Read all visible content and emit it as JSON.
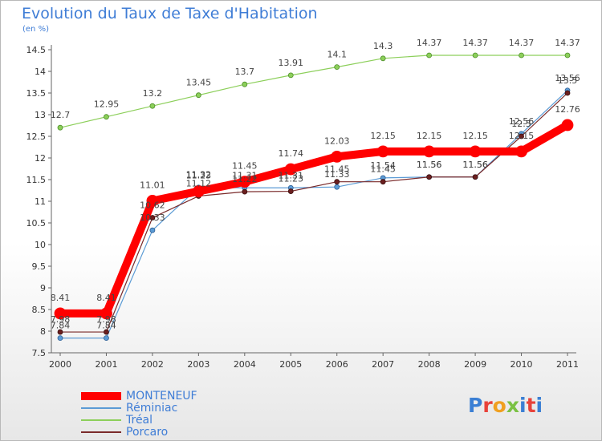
{
  "header": {
    "title": "Evolution du Taux de Taxe d'Habitation",
    "subtitle": "(en %)"
  },
  "logo": {
    "letters": [
      "P",
      "r",
      "o",
      "x",
      "i",
      "t",
      "i"
    ],
    "colors": [
      "#3b7fd4",
      "#e8423a",
      "#f0a020",
      "#7ac143",
      "#3b7fd4",
      "#e8423a",
      "#3b7fd4"
    ]
  },
  "chart_data": {
    "type": "line",
    "title": "Evolution du Taux de Taxe d'Habitation",
    "ylabel": "(en %)",
    "xlabel": "",
    "x": [
      "2000",
      "2001",
      "2002",
      "2003",
      "2004",
      "2005",
      "2006",
      "2007",
      "2008",
      "2009",
      "2010",
      "2011"
    ],
    "ylim": [
      7.5,
      14.5
    ],
    "yticks": [
      "7.5",
      "8",
      "8.5",
      "9",
      "9.5",
      "10",
      "10.5",
      "11",
      "11.5",
      "12",
      "12.5",
      "13",
      "13.5",
      "14",
      "14.5"
    ],
    "grid": false,
    "legend_position": "bottom-left",
    "series": [
      {
        "name": "Tréal",
        "color": "#8ccf5a",
        "values": [
          12.7,
          12.95,
          13.2,
          13.45,
          13.7,
          13.91,
          14.1,
          14.3,
          14.37,
          14.37,
          14.37,
          14.37
        ],
        "labels": [
          "12.7",
          "12.95",
          "13.2",
          "13.45",
          "13.7",
          "13.91",
          "14.1",
          "14.3",
          "14.37",
          "14.37",
          "14.37",
          "14.37"
        ]
      },
      {
        "name": "Réminiac",
        "color": "#5b9bd5",
        "values": [
          7.84,
          7.84,
          10.33,
          11.32,
          11.31,
          11.31,
          11.33,
          11.54,
          11.56,
          11.56,
          12.56,
          13.56
        ],
        "labels": [
          "7.84",
          "7.84",
          "10.33",
          "11.32",
          "11.31",
          "11.31",
          "11.33",
          "11.54",
          "11.56",
          "11.56",
          "12.56",
          "13.56"
        ]
      },
      {
        "name": "Porcaro",
        "color": "#7a2a2a",
        "values": [
          7.98,
          7.98,
          10.62,
          11.12,
          11.22,
          11.23,
          11.45,
          11.45,
          11.56,
          11.56,
          12.5,
          13.5
        ],
        "labels": [
          "7.98",
          "7.98",
          "10.62",
          "11.12",
          "11.22",
          "11.23",
          "11.45",
          "11.45",
          "11.56",
          "11.56",
          "12.5",
          "13.5"
        ]
      },
      {
        "name": "MONTENEUF",
        "color": "#ff0000",
        "values": [
          8.41,
          8.41,
          11.01,
          11.23,
          11.45,
          11.74,
          12.03,
          12.15,
          12.15,
          12.15,
          12.15,
          12.76
        ],
        "labels": [
          "8.41",
          "8.41",
          "11.01",
          "11.23",
          "11.45",
          "11.74",
          "12.03",
          "12.15",
          "12.15",
          "12.15",
          "12.15",
          "12.76"
        ]
      }
    ],
    "legend_order": [
      "MONTENEUF",
      "Réminiac",
      "Tréal",
      "Porcaro"
    ]
  }
}
